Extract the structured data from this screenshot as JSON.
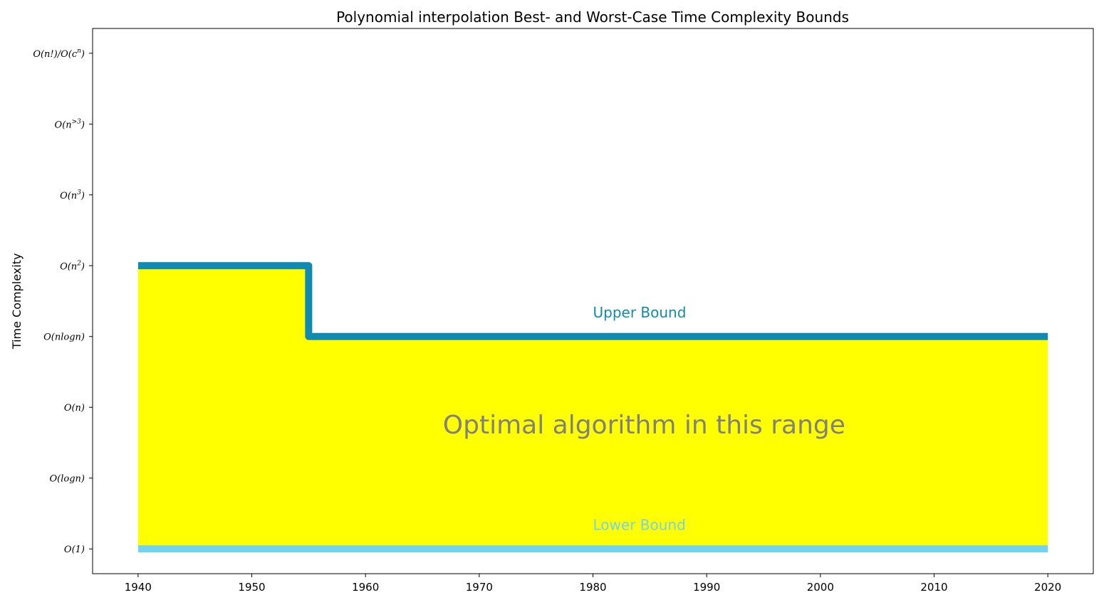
{
  "chart_data": {
    "type": "line",
    "title": "Polynomial interpolation Best- and Worst-Case Time Complexity Bounds",
    "xlabel": "",
    "ylabel": "Time Complexity",
    "xlim": [
      1936,
      2024
    ],
    "ylim": [
      -0.35,
      7.35
    ],
    "x_ticks": [
      1940,
      1950,
      1960,
      1970,
      1980,
      1990,
      2000,
      2010,
      2020
    ],
    "y_ticks": [
      {
        "value": 0,
        "label": "O(1)",
        "sup": ""
      },
      {
        "value": 1,
        "label": "O(logn)",
        "sup": ""
      },
      {
        "value": 2,
        "label": "O(n)",
        "sup": ""
      },
      {
        "value": 3,
        "label": "O(nlogn)",
        "sup": ""
      },
      {
        "value": 4,
        "label": "O(n",
        "sup": "2",
        "suffix": ")"
      },
      {
        "value": 5,
        "label": "O(n",
        "sup": "3",
        "suffix": ")"
      },
      {
        "value": 6,
        "label": "O(n",
        "sup": ">3",
        "suffix": ")"
      },
      {
        "value": 7,
        "label": "O(n!)/O(c",
        "sup": "n",
        "suffix": ")"
      }
    ],
    "grid": false,
    "series": [
      {
        "name": "Upper Bound",
        "color": "#118ab2",
        "step": "post",
        "points": [
          [
            1940,
            4
          ],
          [
            1955,
            4
          ],
          [
            1955,
            3
          ],
          [
            2020,
            3
          ]
        ]
      },
      {
        "name": "Lower Bound",
        "color": "#73d2f0",
        "step": "post",
        "points": [
          [
            1940,
            0
          ],
          [
            2020,
            0
          ]
        ]
      }
    ],
    "fill_between": {
      "color": "#ffff00",
      "lower": "Lower Bound",
      "upper": "Upper Bound"
    },
    "annotations": [
      {
        "text": "Upper Bound",
        "x": 1980,
        "y": 3.27,
        "color": "#118ab2"
      },
      {
        "text": "Lower Bound",
        "x": 1980,
        "y": 0.27,
        "color": "#73d2f0"
      },
      {
        "text": "Optimal algorithm in this range",
        "x": 1984.5,
        "y": 1.63,
        "color": "#808080"
      }
    ]
  }
}
